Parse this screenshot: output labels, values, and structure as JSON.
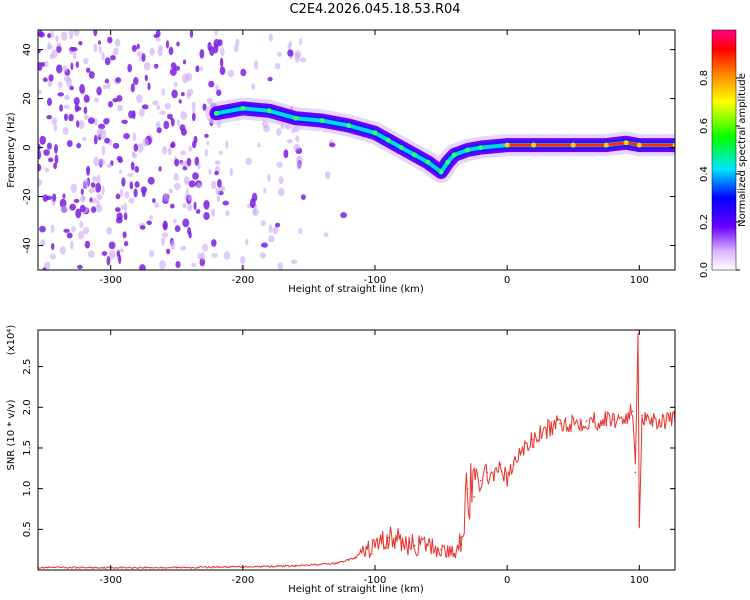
{
  "title": "C2E4.2026.045.18.53.R04",
  "colors": {
    "trace": "#e8332b",
    "background_density": "#8a2be2"
  },
  "chart_data": [
    {
      "type": "heatmap",
      "title": "C2E4.2026.045.18.53.R04",
      "xlabel": "Height of straight line (km)",
      "ylabel": "Frequency (Hz)",
      "xlim": [
        -355,
        127
      ],
      "ylim": [
        -50,
        48
      ],
      "xticks": [
        -300,
        -200,
        -100,
        0,
        100
      ],
      "yticks": [
        -40,
        -20,
        0,
        20,
        40
      ],
      "colorbar": {
        "label": "Normalized spectral amplitude",
        "range": [
          0.0,
          1.0
        ],
        "ticks": [
          "0.0",
          "0.2",
          "0.4",
          "0.6",
          "0.8"
        ]
      },
      "ridge": [
        {
          "x": -220,
          "y": 14
        },
        {
          "x": -200,
          "y": 16
        },
        {
          "x": -180,
          "y": 15
        },
        {
          "x": -160,
          "y": 12
        },
        {
          "x": -140,
          "y": 11
        },
        {
          "x": -120,
          "y": 9
        },
        {
          "x": -100,
          "y": 6
        },
        {
          "x": -90,
          "y": 3
        },
        {
          "x": -80,
          "y": 0
        },
        {
          "x": -70,
          "y": -3
        },
        {
          "x": -60,
          "y": -6
        },
        {
          "x": -50,
          "y": -10
        },
        {
          "x": -45,
          "y": -6
        },
        {
          "x": -40,
          "y": -3
        },
        {
          "x": -30,
          "y": -1
        },
        {
          "x": -20,
          "y": 0
        },
        {
          "x": 0,
          "y": 1
        },
        {
          "x": 20,
          "y": 1
        },
        {
          "x": 50,
          "y": 1
        },
        {
          "x": 75,
          "y": 1
        },
        {
          "x": 90,
          "y": 2
        },
        {
          "x": 100,
          "y": 1
        },
        {
          "x": 127,
          "y": 1
        }
      ]
    },
    {
      "type": "line",
      "xlabel": "Height of straight line (km)",
      "ylabel": "SNR (10 * v/v)",
      "y_multiplier": "(x10⁴)",
      "xlim": [
        -355,
        127
      ],
      "ylim": [
        0,
        2.95
      ],
      "xticks": [
        -300,
        -200,
        -100,
        0,
        100
      ],
      "yticks": [
        "0.5",
        "1.0",
        "1.5",
        "2.0",
        "2.5"
      ],
      "series": [
        {
          "points": [
            {
              "x": -355,
              "y": 0.03
            },
            {
              "x": -300,
              "y": 0.03
            },
            {
              "x": -250,
              "y": 0.03
            },
            {
              "x": -200,
              "y": 0.04
            },
            {
              "x": -160,
              "y": 0.05
            },
            {
              "x": -130,
              "y": 0.08
            },
            {
              "x": -115,
              "y": 0.15
            },
            {
              "x": -100,
              "y": 0.3
            },
            {
              "x": -90,
              "y": 0.4
            },
            {
              "x": -80,
              "y": 0.35
            },
            {
              "x": -70,
              "y": 0.3
            },
            {
              "x": -60,
              "y": 0.3
            },
            {
              "x": -50,
              "y": 0.25
            },
            {
              "x": -40,
              "y": 0.2
            },
            {
              "x": -35,
              "y": 0.4
            },
            {
              "x": -30,
              "y": 1.0
            },
            {
              "x": -25,
              "y": 0.9
            },
            {
              "x": -20,
              "y": 1.1
            },
            {
              "x": -15,
              "y": 1.2
            },
            {
              "x": -10,
              "y": 1.1
            },
            {
              "x": -5,
              "y": 1.3
            },
            {
              "x": 0,
              "y": 1.1
            },
            {
              "x": 5,
              "y": 1.3
            },
            {
              "x": 10,
              "y": 1.45
            },
            {
              "x": 20,
              "y": 1.6
            },
            {
              "x": 30,
              "y": 1.72
            },
            {
              "x": 40,
              "y": 1.8
            },
            {
              "x": 60,
              "y": 1.83
            },
            {
              "x": 80,
              "y": 1.85
            },
            {
              "x": 90,
              "y": 1.88
            },
            {
              "x": 95,
              "y": 1.95
            },
            {
              "x": 97,
              "y": 1.2
            },
            {
              "x": 99,
              "y": 2.95
            },
            {
              "x": 100,
              "y": 0.55
            },
            {
              "x": 102,
              "y": 1.9
            },
            {
              "x": 110,
              "y": 1.85
            },
            {
              "x": 127,
              "y": 1.83
            }
          ]
        }
      ]
    }
  ]
}
